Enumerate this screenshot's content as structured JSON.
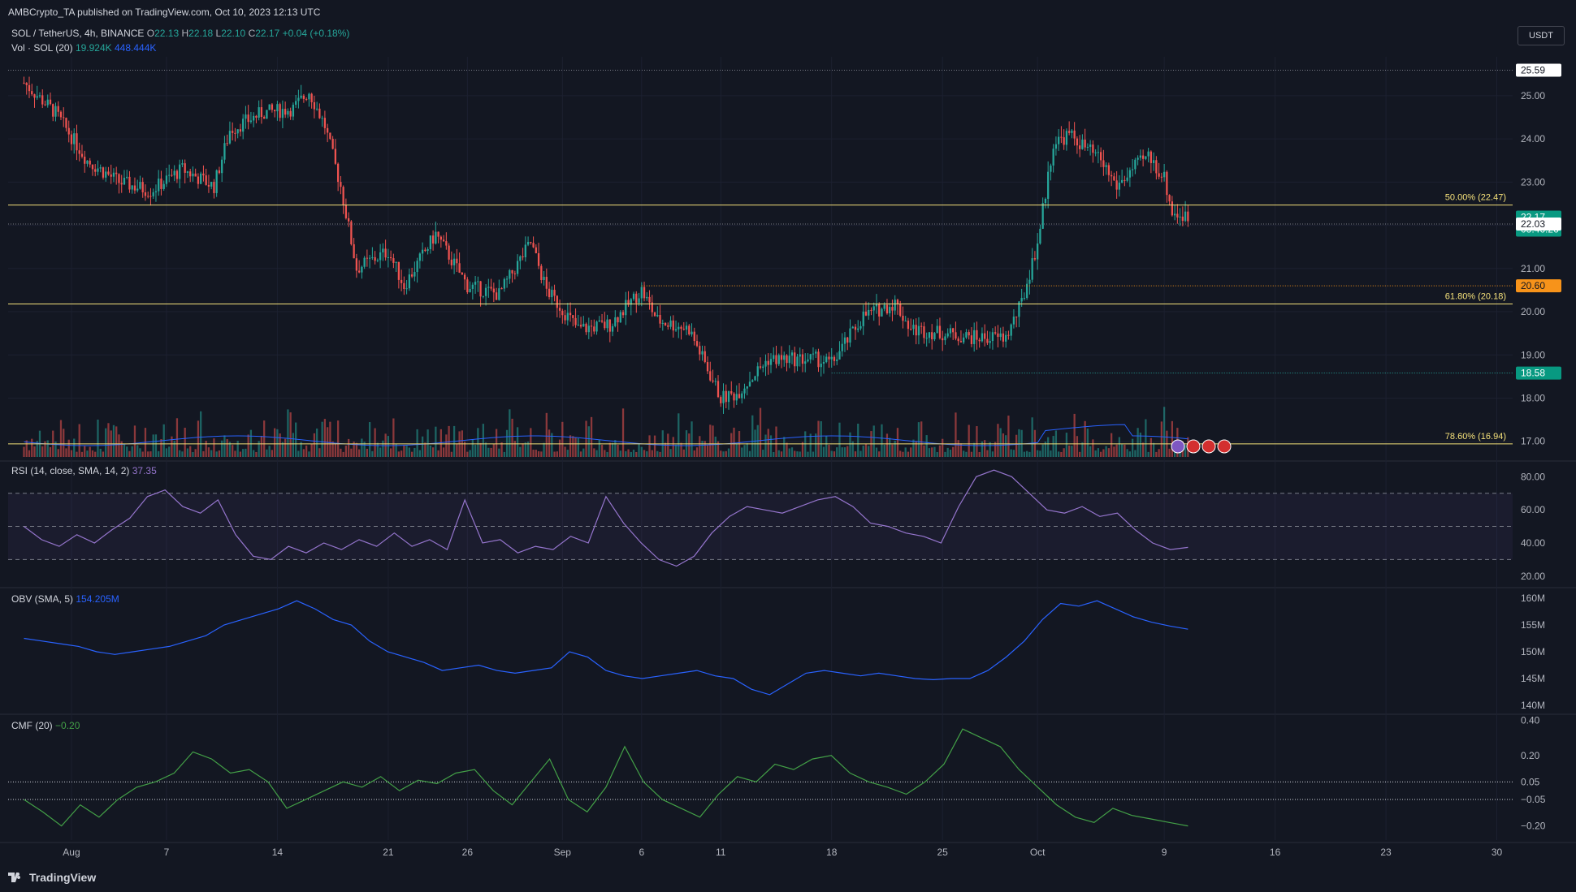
{
  "published": "AMBCrypto_TA published on TradingView.com, Oct 10, 2023 12:13 UTC",
  "symbol_line": {
    "pair": "SOL / TetherUS, 4h, BINANCE",
    "o_label": "O",
    "o": "22.13",
    "h_label": "H",
    "h": "22.18",
    "l_label": "L",
    "l": "22.10",
    "c_label": "C",
    "c": "22.17",
    "change": "+0.04 (+0.18%)"
  },
  "vol_line": {
    "label": "Vol · SOL (20)",
    "v1": "19.924K",
    "v2": "448.444K"
  },
  "currency": "USDT",
  "brand": "TradingView",
  "colors": {
    "bg": "#131722",
    "up": "#26a69a",
    "down": "#ef5350",
    "fib": "#f5e17a",
    "rsi": "#9575cd",
    "obv": "#2962ff",
    "cmf": "#43a047",
    "orange": "#f7931a"
  },
  "chart_data": [
    {
      "type": "candlestick",
      "interval": "4h",
      "x_ticks": [
        "Aug",
        "7",
        "14",
        "21",
        "26",
        "Sep",
        "6",
        "11",
        "18",
        "25",
        "Oct",
        "9",
        "16",
        "23",
        "30"
      ],
      "y_ticks": [
        "25.00",
        "24.00",
        "23.00",
        "22.00",
        "21.00",
        "20.00",
        "19.00",
        "18.00",
        "17.00"
      ],
      "ylim": [
        16.6,
        25.9
      ],
      "price_path": [
        [
          "Jul 29",
          25.3
        ],
        [
          "Jul 31",
          24.6
        ],
        [
          "Aug 2",
          23.5
        ],
        [
          "Aug 4",
          23.0
        ],
        [
          "Aug 6",
          22.8
        ],
        [
          "Aug 8",
          23.3
        ],
        [
          "Aug 10",
          22.9
        ],
        [
          "Aug 11",
          24.2
        ],
        [
          "Aug 13",
          24.6
        ],
        [
          "Aug 15",
          24.7
        ],
        [
          "Aug 16",
          25.1
        ],
        [
          "Aug 17",
          24.3
        ],
        [
          "Aug 18",
          22.9
        ],
        [
          "Aug 19",
          21.0
        ],
        [
          "Aug 21",
          21.4
        ],
        [
          "Aug 22",
          20.6
        ],
        [
          "Aug 24",
          21.8
        ],
        [
          "Aug 26",
          20.6
        ],
        [
          "Aug 28",
          20.4
        ],
        [
          "Aug 30",
          21.6
        ],
        [
          "Aug 31",
          20.5
        ],
        [
          "Sep 2",
          19.6
        ],
        [
          "Sep 4",
          19.7
        ],
        [
          "Sep 6",
          20.5
        ],
        [
          "Sep 7",
          19.8
        ],
        [
          "Sep 9",
          19.6
        ],
        [
          "Sep 11",
          18.0
        ],
        [
          "Sep 12",
          18.1
        ],
        [
          "Sep 14",
          18.9
        ],
        [
          "Sep 17",
          18.9
        ],
        [
          "Sep 18",
          18.8
        ],
        [
          "Sep 20",
          19.9
        ],
        [
          "Sep 22",
          20.2
        ],
        [
          "Sep 23",
          19.6
        ],
        [
          "Sep 25",
          19.5
        ],
        [
          "Sep 27",
          19.4
        ],
        [
          "Sep 29",
          19.4
        ],
        [
          "Sep 30",
          20.2
        ],
        [
          "Oct 1",
          21.6
        ],
        [
          "Oct 2",
          23.9
        ],
        [
          "Oct 3",
          24.1
        ],
        [
          "Oct 5",
          23.5
        ],
        [
          "Oct 6",
          22.9
        ],
        [
          "Oct 7",
          23.3
        ],
        [
          "Oct 8",
          23.6
        ],
        [
          "Oct 9",
          23.1
        ],
        [
          "Oct 9 12:00",
          22.3
        ],
        [
          "Oct 10 12:00",
          22.17
        ]
      ],
      "price_labels": [
        {
          "value": "25.59",
          "style": "white"
        },
        {
          "value": "22.17",
          "sub": "03:46:26",
          "style": "green"
        },
        {
          "value": "22.03",
          "style": "white"
        },
        {
          "value": "20.60",
          "style": "orange"
        },
        {
          "value": "18.58",
          "style": "green"
        }
      ],
      "fib_levels": [
        {
          "label": "50.00% (22.47)",
          "value": 22.47
        },
        {
          "label": "61.80% (20.18)",
          "value": 20.18
        },
        {
          "label": "78.60% (16.94)",
          "value": 16.94
        }
      ]
    },
    {
      "type": "line",
      "name": "RSI (14, close, SMA, 14, 2)",
      "legend_value": "37.35",
      "y_ticks": [
        "80.00",
        "60.00",
        "40.00",
        "20.00"
      ],
      "ylim": [
        15,
        88
      ],
      "bands": [
        30,
        50,
        70
      ],
      "values": [
        50,
        42,
        38,
        45,
        40,
        48,
        55,
        68,
        72,
        62,
        58,
        66,
        45,
        32,
        30,
        38,
        34,
        40,
        36,
        42,
        38,
        46,
        38,
        42,
        36,
        66,
        40,
        42,
        34,
        38,
        36,
        44,
        40,
        68,
        52,
        40,
        30,
        26,
        32,
        46,
        56,
        62,
        60,
        58,
        62,
        66,
        68,
        62,
        52,
        50,
        46,
        44,
        40,
        62,
        80,
        84,
        80,
        70,
        60,
        58,
        62,
        56,
        58,
        48,
        40,
        36,
        37.35
      ]
    },
    {
      "type": "line",
      "name": "OBV (SMA, 5)",
      "legend_value": "154.205M",
      "y_ticks": [
        "160M",
        "155M",
        "150M",
        "145M",
        "140M"
      ],
      "ylim": [
        138.8,
        161.5
      ],
      "values": [
        152.5,
        152,
        151.5,
        151,
        150,
        149.5,
        150,
        150.5,
        151,
        152,
        153,
        155,
        156,
        157,
        158,
        159.5,
        158,
        156,
        155,
        152,
        150,
        149,
        148,
        146.5,
        147,
        147.5,
        146.5,
        146,
        146.5,
        147,
        150,
        149,
        146.5,
        145.5,
        145,
        145.5,
        146,
        146.5,
        145.5,
        145,
        143,
        142,
        144,
        146,
        146.5,
        146,
        145.5,
        146,
        145.5,
        145,
        144.8,
        145,
        145,
        146.5,
        149,
        152,
        156,
        159,
        158.5,
        159.5,
        158,
        156.5,
        155.5,
        154.8,
        154.205
      ]
    },
    {
      "type": "line",
      "name": "CMF (20)",
      "legend_value": "−0.20",
      "y_ticks": [
        "0.40",
        "0.20",
        "0.05",
        "−0.05",
        "−0.20"
      ],
      "ylim": [
        -0.28,
        0.42
      ],
      "bands": [
        0.05,
        -0.05
      ],
      "values": [
        -0.05,
        -0.12,
        -0.2,
        -0.08,
        -0.15,
        -0.05,
        0.02,
        0.05,
        0.1,
        0.22,
        0.18,
        0.1,
        0.12,
        0.05,
        -0.1,
        -0.05,
        0.0,
        0.05,
        0.02,
        0.08,
        0.0,
        0.06,
        0.04,
        0.1,
        0.12,
        0.0,
        -0.08,
        0.05,
        0.18,
        -0.05,
        -0.12,
        0.02,
        0.25,
        0.05,
        -0.05,
        -0.1,
        -0.15,
        -0.02,
        0.08,
        0.05,
        0.15,
        0.12,
        0.18,
        0.2,
        0.1,
        0.05,
        0.02,
        -0.02,
        0.05,
        0.15,
        0.35,
        0.3,
        0.25,
        0.12,
        0.02,
        -0.08,
        -0.15,
        -0.18,
        -0.1,
        -0.14,
        -0.16,
        -0.18,
        -0.2
      ]
    }
  ]
}
